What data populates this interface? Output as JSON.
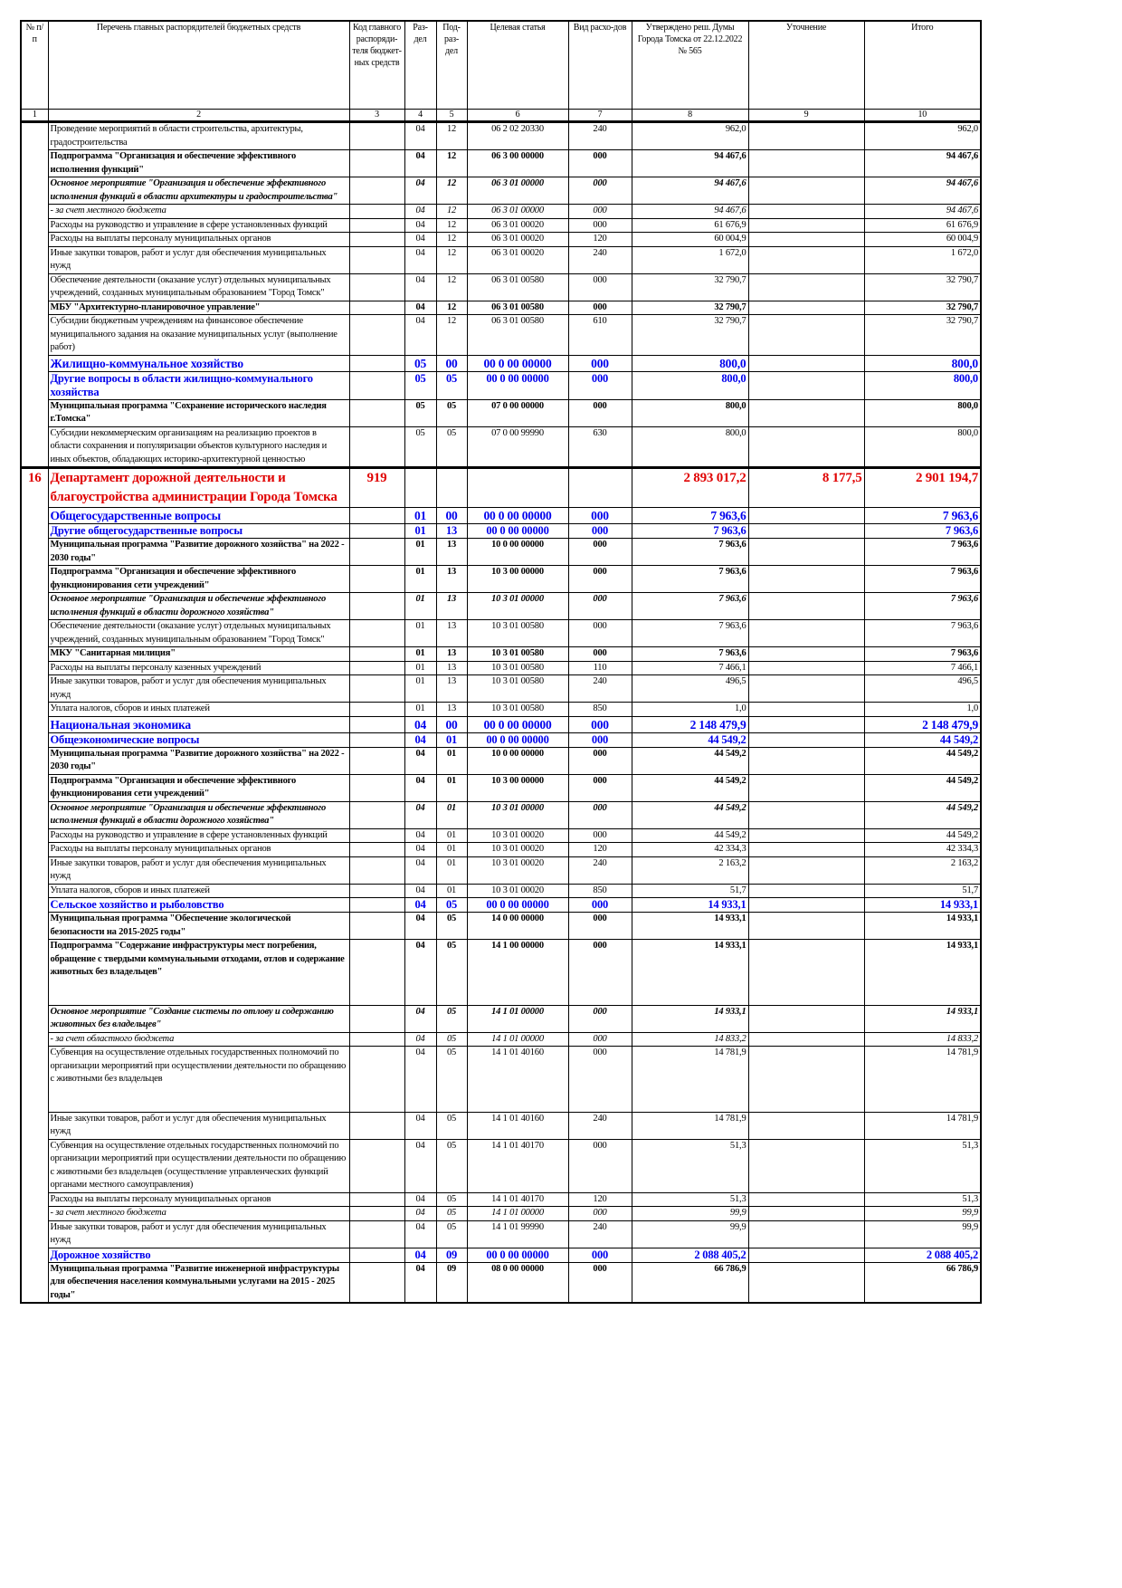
{
  "header": [
    "№ п/п",
    "Перечень главных распорядителей бюджетных средств",
    "Код главного распоряди-теля бюджет-ных средств",
    "Раз-дел",
    "Под-раз-дел",
    "Целевая статья",
    "Вид расхо-дов",
    "Утверждено реш. Думы Города Томска от 22.12.2022 № 565",
    "Уточнение",
    "Итого"
  ],
  "column_numbers": [
    "1",
    "2",
    "3",
    "4",
    "5",
    "6",
    "7",
    "8",
    "9",
    "10"
  ],
  "colors": {
    "section": "#0000ee",
    "department": "#e00000"
  },
  "rows": [
    {
      "style": "normal",
      "name": "Проведение мероприятий в области строительства, архитектуры, градостроительства",
      "rz": "04",
      "prz": "12",
      "cs": "06 2 02 20330",
      "vr": "240",
      "approved": "962,0",
      "change": "",
      "total": "962,0"
    },
    {
      "style": "bold",
      "name": "Подпрограмма \"Организация и обеспечение эффективного исполнения функций\"",
      "rz": "04",
      "prz": "12",
      "cs": "06 3 00 00000",
      "vr": "000",
      "approved": "94 467,6",
      "change": "",
      "total": "94 467,6"
    },
    {
      "style": "bolditalic",
      "name": "Основное мероприятие \"Организация и обеспечение эффективного исполнения функций в области архитектуры и градостроительства\"",
      "rz": "04",
      "prz": "12",
      "cs": "06 3 01 00000",
      "vr": "000",
      "approved": "94 467,6",
      "change": "",
      "total": "94 467,6"
    },
    {
      "style": "italic",
      "name": "- за счет местного бюджета",
      "rz": "04",
      "prz": "12",
      "cs": "06 3 01 00000",
      "vr": "000",
      "approved": "94 467,6",
      "change": "",
      "total": "94 467,6"
    },
    {
      "style": "normal",
      "name": "Расходы на руководство и управление в сфере установленных функций",
      "rz": "04",
      "prz": "12",
      "cs": "06 3 01 00020",
      "vr": "000",
      "approved": "61 676,9",
      "change": "",
      "total": "61 676,9"
    },
    {
      "style": "normal",
      "name": "Расходы на выплаты персоналу муниципальных органов",
      "rz": "04",
      "prz": "12",
      "cs": "06 3 01 00020",
      "vr": "120",
      "approved": "60 004,9",
      "change": "",
      "total": "60 004,9"
    },
    {
      "style": "normal",
      "name": "Иные закупки товаров, работ и услуг для обеспечения муниципальных нужд",
      "rz": "04",
      "prz": "12",
      "cs": "06 3 01 00020",
      "vr": "240",
      "approved": "1 672,0",
      "change": "",
      "total": "1 672,0"
    },
    {
      "style": "normal",
      "name": "Обеспечение деятельности (оказание услуг) отдельных муниципальных учреждений, созданных муниципальным образованием \"Город Томск\"",
      "rz": "04",
      "prz": "12",
      "cs": "06 3 01 00580",
      "vr": "000",
      "approved": "32 790,7",
      "change": "",
      "total": "32 790,7"
    },
    {
      "style": "bold",
      "name": "МБУ \"Архитектурно-планировочное управление\"",
      "rz": "04",
      "prz": "12",
      "cs": "06 3 01 00580",
      "vr": "000",
      "approved": "32 790,7",
      "change": "",
      "total": "32 790,7"
    },
    {
      "style": "normal",
      "name": "Субсидии бюджетным учреждениям на финансовое обеспечение муниципального задания на оказание муниципальных услуг (выполнение работ)",
      "rz": "04",
      "prz": "12",
      "cs": "06 3 01 00580",
      "vr": "610",
      "approved": "32 790,7",
      "change": "",
      "total": "32 790,7"
    },
    {
      "style": "sec",
      "name": "Жилищно-коммунальное хозяйство",
      "rz": "05",
      "prz": "00",
      "cs": "00 0 00 00000",
      "vr": "000",
      "approved": "800,0",
      "change": "",
      "total": "800,0"
    },
    {
      "style": "sub",
      "name": "Другие вопросы в области жилищно-коммунального хозяйства",
      "rz": "05",
      "prz": "05",
      "cs": "00 0 00 00000",
      "vr": "000",
      "approved": "800,0",
      "change": "",
      "total": "800,0"
    },
    {
      "style": "bold",
      "name": "Муниципальная программа \"Сохранение исторического наследия г.Томска\"",
      "rz": "05",
      "prz": "05",
      "cs": "07 0 00 00000",
      "vr": "000",
      "approved": "800,0",
      "change": "",
      "total": "800,0"
    },
    {
      "style": "normal",
      "name": "Субсидии некоммерческим организациям на реализацию проектов в области сохранения и популяризации объектов культурного наследия и иных объектов, обладающих историко-архитектурной ценностью",
      "rz": "05",
      "prz": "05",
      "cs": "07 0 00 99990",
      "vr": "630",
      "approved": "800,0",
      "change": "",
      "total": "800,0"
    },
    {
      "style": "dept",
      "num": "16",
      "name": "Департамент дорожной деятельности и благоустройства администрации Города Томска",
      "code": "919",
      "rz": "",
      "prz": "",
      "cs": "",
      "vr": "",
      "approved": "2 893 017,2",
      "change": "8 177,5",
      "total": "2 901 194,7"
    },
    {
      "style": "sec",
      "name": "Общегосударственные вопросы",
      "rz": "01",
      "prz": "00",
      "cs": "00 0 00 00000",
      "vr": "000",
      "approved": "7 963,6",
      "change": "",
      "total": "7 963,6"
    },
    {
      "style": "sub",
      "name": "Другие общегосударственные вопросы",
      "rz": "01",
      "prz": "13",
      "cs": "00 0 00 00000",
      "vr": "000",
      "approved": "7 963,6",
      "change": "",
      "total": "7 963,6"
    },
    {
      "style": "bold",
      "name": "Муниципальная программа \"Развитие дорожного хозяйства\" на 2022 - 2030 годы\"",
      "rz": "01",
      "prz": "13",
      "cs": "10 0 00 00000",
      "vr": "000",
      "approved": "7 963,6",
      "change": "",
      "total": "7 963,6"
    },
    {
      "style": "bold",
      "name": "Подпрограмма \"Организация и обеспечение эффективного функционирования сети учреждений\"",
      "rz": "01",
      "prz": "13",
      "cs": "10 3 00 00000",
      "vr": "000",
      "approved": "7 963,6",
      "change": "",
      "total": "7 963,6"
    },
    {
      "style": "bolditalic",
      "name": "Основное мероприятие \"Организация и обеспечение эффективного исполнения функций в области дорожного хозяйства\"",
      "rz": "01",
      "prz": "13",
      "cs": "10 3 01 00000",
      "vr": "000",
      "approved": "7 963,6",
      "change": "",
      "total": "7 963,6"
    },
    {
      "style": "normal",
      "name": "Обеспечение деятельности (оказание услуг) отдельных муниципальных учреждений, созданных муниципальным образованием \"Город Томск\"",
      "rz": "01",
      "prz": "13",
      "cs": "10 3 01 00580",
      "vr": "000",
      "approved": "7 963,6",
      "change": "",
      "total": "7 963,6"
    },
    {
      "style": "bold",
      "name": "МКУ \"Санитарная милиция\"",
      "rz": "01",
      "prz": "13",
      "cs": "10 3 01 00580",
      "vr": "000",
      "approved": "7 963,6",
      "change": "",
      "total": "7 963,6"
    },
    {
      "style": "normal",
      "name": "Расходы на выплаты персоналу казенных учреждений",
      "rz": "01",
      "prz": "13",
      "cs": "10 3 01 00580",
      "vr": "110",
      "approved": "7 466,1",
      "change": "",
      "total": "7 466,1"
    },
    {
      "style": "normal",
      "name": "Иные закупки товаров, работ и услуг для обеспечения муниципальных нужд",
      "rz": "01",
      "prz": "13",
      "cs": "10 3 01 00580",
      "vr": "240",
      "approved": "496,5",
      "change": "",
      "total": "496,5"
    },
    {
      "style": "normal",
      "name": "Уплата налогов, сборов и иных платежей",
      "rz": "01",
      "prz": "13",
      "cs": "10 3 01 00580",
      "vr": "850",
      "approved": "1,0",
      "change": "",
      "total": "1,0"
    },
    {
      "style": "sec",
      "name": "Национальная экономика",
      "rz": "04",
      "prz": "00",
      "cs": "00 0 00 00000",
      "vr": "000",
      "approved": "2 148 479,9",
      "change": "",
      "total": "2 148 479,9"
    },
    {
      "style": "sub",
      "name": "Общеэкономические вопросы",
      "rz": "04",
      "prz": "01",
      "cs": "00 0 00 00000",
      "vr": "000",
      "approved": "44 549,2",
      "change": "",
      "total": "44 549,2"
    },
    {
      "style": "bold",
      "name": "Муниципальная программа \"Развитие дорожного хозяйства\" на 2022 - 2030 годы\"",
      "rz": "04",
      "prz": "01",
      "cs": "10 0 00 00000",
      "vr": "000",
      "approved": "44 549,2",
      "change": "",
      "total": "44 549,2"
    },
    {
      "style": "bold",
      "name": "Подпрограмма \"Организация и обеспечение эффективного функционирования сети учреждений\"",
      "rz": "04",
      "prz": "01",
      "cs": "10 3 00 00000",
      "vr": "000",
      "approved": "44 549,2",
      "change": "",
      "total": "44 549,2"
    },
    {
      "style": "bolditalic",
      "name": "Основное мероприятие \"Организация и обеспечение эффективного исполнения функций в области дорожного хозяйства\"",
      "rz": "04",
      "prz": "01",
      "cs": "10 3 01 00000",
      "vr": "000",
      "approved": "44 549,2",
      "change": "",
      "total": "44 549,2"
    },
    {
      "style": "normal",
      "name": "Расходы на руководство и управление в сфере установленных функций",
      "rz": "04",
      "prz": "01",
      "cs": "10 3 01 00020",
      "vr": "000",
      "approved": "44 549,2",
      "change": "",
      "total": "44 549,2"
    },
    {
      "style": "normal",
      "name": "Расходы на выплаты персоналу муниципальных органов",
      "rz": "04",
      "prz": "01",
      "cs": "10 3 01 00020",
      "vr": "120",
      "approved": "42 334,3",
      "change": "",
      "total": "42 334,3"
    },
    {
      "style": "normal",
      "name": "Иные закупки товаров, работ и услуг для обеспечения муниципальных нужд",
      "rz": "04",
      "prz": "01",
      "cs": "10 3 01 00020",
      "vr": "240",
      "approved": "2 163,2",
      "change": "",
      "total": "2 163,2"
    },
    {
      "style": "normal",
      "name": "Уплата налогов, сборов и иных платежей",
      "rz": "04",
      "prz": "01",
      "cs": "10 3 01 00020",
      "vr": "850",
      "approved": "51,7",
      "change": "",
      "total": "51,7"
    },
    {
      "style": "sub",
      "name": "Сельское хозяйство и рыболовство",
      "rz": "04",
      "prz": "05",
      "cs": "00 0 00 00000",
      "vr": "000",
      "approved": "14 933,1",
      "change": "",
      "total": "14 933,1"
    },
    {
      "style": "bold",
      "name": "Муниципальная программа \"Обеспечение экологической безопасности на 2015-2025 годы\"",
      "rz": "04",
      "prz": "05",
      "cs": "14 0 00 00000",
      "vr": "000",
      "approved": "14 933,1",
      "change": "",
      "total": "14 933,1"
    },
    {
      "style": "bold",
      "name": "Подпрограмма \"Содержание инфраструктуры мест погребения, обращение с твердыми коммунальными отходами, отлов и содержание животных без владельцев\"",
      "rz": "04",
      "prz": "05",
      "cs": "14 1 00 00000",
      "vr": "000",
      "approved": "14 933,1",
      "change": "",
      "total": "14 933,1"
    },
    {
      "style": "bolditalic",
      "name": "Основное мероприятие \"Создание системы по отлову и содержанию животных без владельцев\"",
      "rz": "04",
      "prz": "05",
      "cs": "14 1 01 00000",
      "vr": "000",
      "approved": "14 933,1",
      "change": "",
      "total": "14 933,1"
    },
    {
      "style": "italic",
      "name": "- за счет областного бюджета",
      "rz": "04",
      "prz": "05",
      "cs": "14 1 01 00000",
      "vr": "000",
      "approved": "14 833,2",
      "change": "",
      "total": "14 833,2"
    },
    {
      "style": "normal",
      "name": "Субвенция на осуществление отдельных государственных полномочий по организации мероприятий при осуществлении деятельности по обращению с животными без владельцев",
      "rz": "04",
      "prz": "05",
      "cs": "14 1 01 40160",
      "vr": "000",
      "approved": "14 781,9",
      "change": "",
      "total": "14 781,9"
    },
    {
      "style": "normal",
      "name": "Иные закупки товаров, работ и услуг для обеспечения муниципальных нужд",
      "rz": "04",
      "prz": "05",
      "cs": "14 1 01 40160",
      "vr": "240",
      "approved": "14 781,9",
      "change": "",
      "total": "14 781,9"
    },
    {
      "style": "normal",
      "name": "Субвенция на осуществление отдельных государственных полномочий по организации мероприятий при осуществлении деятельности по обращению с животными без владельцев (осуществление управленческих функций органами местного самоуправления)",
      "rz": "04",
      "prz": "05",
      "cs": "14 1 01 40170",
      "vr": "000",
      "approved": "51,3",
      "change": "",
      "total": "51,3"
    },
    {
      "style": "normal",
      "name": "Расходы на выплаты персоналу муниципальных органов",
      "rz": "04",
      "prz": "05",
      "cs": "14 1 01 40170",
      "vr": "120",
      "approved": "51,3",
      "change": "",
      "total": "51,3"
    },
    {
      "style": "italic",
      "name": "- за счет местного бюджета",
      "rz": "04",
      "prz": "05",
      "cs": "14 1 01 00000",
      "vr": "000",
      "approved": "99,9",
      "change": "",
      "total": "99,9"
    },
    {
      "style": "normal",
      "name": "Иные закупки товаров, работ и услуг для обеспечения муниципальных нужд",
      "rz": "04",
      "prz": "05",
      "cs": "14 1 01 99990",
      "vr": "240",
      "approved": "99,9",
      "change": "",
      "total": "99,9"
    },
    {
      "style": "sub",
      "name": "Дорожное хозяйство",
      "rz": "04",
      "prz": "09",
      "cs": "00 0 00 00000",
      "vr": "000",
      "approved": "2 088 405,2",
      "change": "",
      "total": "2 088 405,2"
    },
    {
      "style": "bold",
      "name": "Муниципальная программа \"Развитие инженерной инфраструктуры для обеспечения населения коммунальными услугами на 2015 - 2025 годы\"",
      "rz": "04",
      "prz": "09",
      "cs": "08 0 00 00000",
      "vr": "000",
      "approved": "66 786,9",
      "change": "",
      "total": "66 786,9"
    }
  ]
}
